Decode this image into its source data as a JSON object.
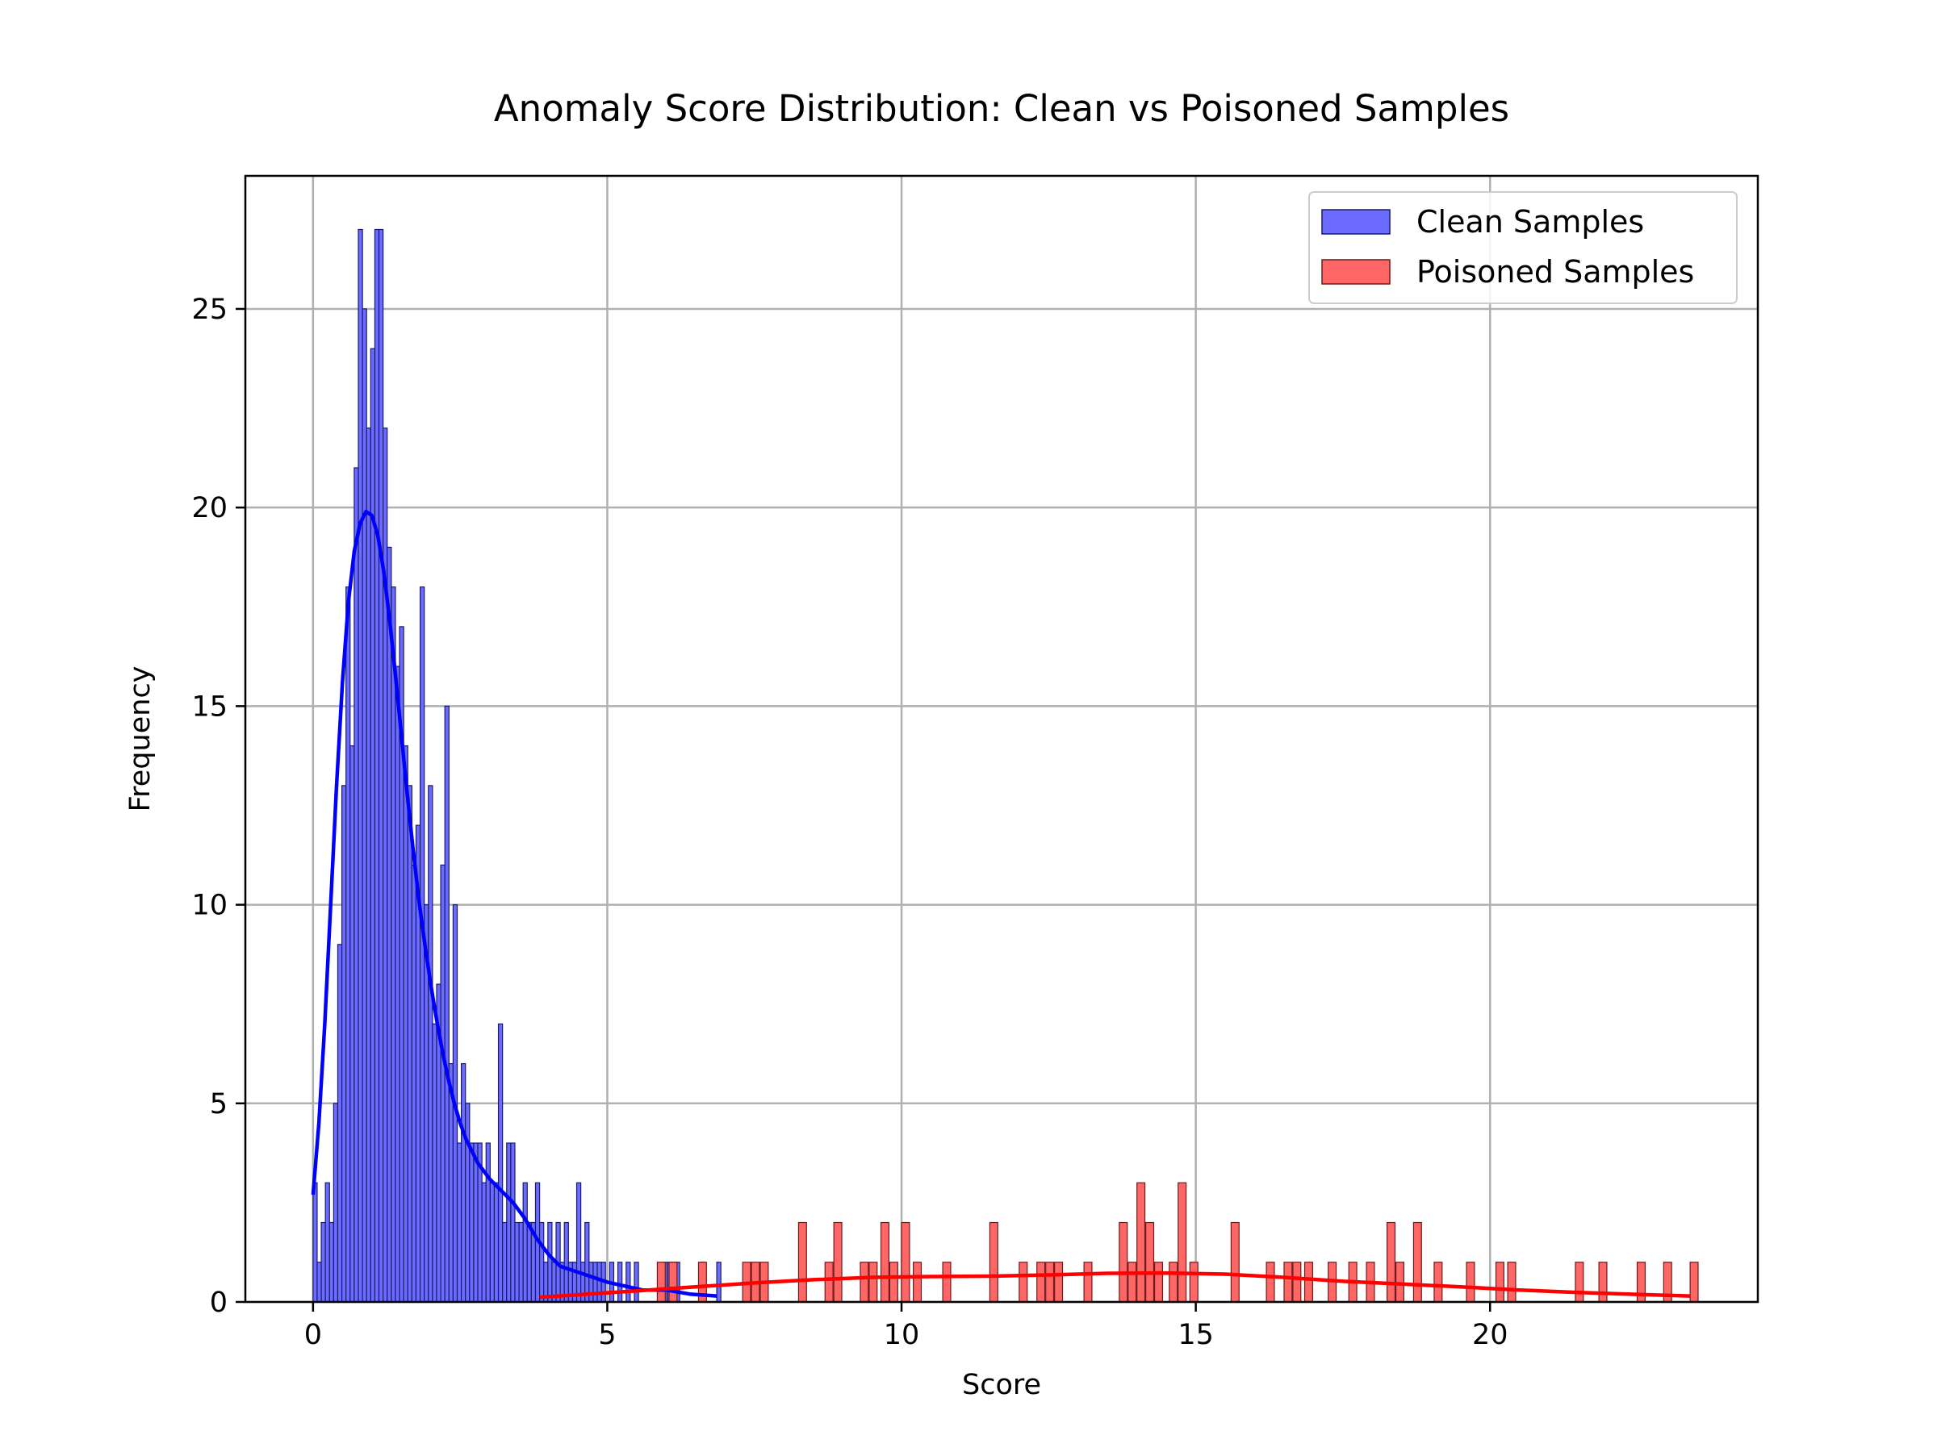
{
  "chart_data": {
    "type": "histogram",
    "title": "Anomaly Score Distribution: Clean vs Poisoned Samples",
    "xlabel": "Score",
    "ylabel": "Frequency",
    "xlim": [
      -1.15,
      24.55
    ],
    "ylim": [
      0,
      28.35
    ],
    "xticks": [
      0,
      5,
      10,
      15,
      20
    ],
    "yticks": [
      0,
      5,
      10,
      15,
      20,
      25
    ],
    "grid": true,
    "legend_position": "top-right",
    "series": [
      {
        "name": "Clean Samples",
        "color": "#6b6bff",
        "edge_color": "#1a1a6e",
        "kde_color": "#0000ff",
        "bin_width": 0.07,
        "bins": [
          [
            0.0,
            3
          ],
          [
            0.07,
            1
          ],
          [
            0.14,
            2
          ],
          [
            0.21,
            3
          ],
          [
            0.28,
            2
          ],
          [
            0.35,
            5
          ],
          [
            0.42,
            9
          ],
          [
            0.49,
            13
          ],
          [
            0.56,
            18
          ],
          [
            0.63,
            14
          ],
          [
            0.7,
            21
          ],
          [
            0.77,
            27
          ],
          [
            0.84,
            25
          ],
          [
            0.91,
            22
          ],
          [
            0.98,
            24
          ],
          [
            1.05,
            27
          ],
          [
            1.12,
            27
          ],
          [
            1.19,
            22
          ],
          [
            1.26,
            19
          ],
          [
            1.33,
            18
          ],
          [
            1.4,
            16
          ],
          [
            1.47,
            17
          ],
          [
            1.54,
            14
          ],
          [
            1.61,
            13
          ],
          [
            1.68,
            11
          ],
          [
            1.75,
            12
          ],
          [
            1.82,
            18
          ],
          [
            1.89,
            10
          ],
          [
            1.96,
            13
          ],
          [
            2.03,
            7
          ],
          [
            2.1,
            8
          ],
          [
            2.17,
            11
          ],
          [
            2.24,
            15
          ],
          [
            2.31,
            6
          ],
          [
            2.38,
            10
          ],
          [
            2.45,
            4
          ],
          [
            2.52,
            6
          ],
          [
            2.59,
            5
          ],
          [
            2.66,
            4
          ],
          [
            2.73,
            4
          ],
          [
            2.8,
            4
          ],
          [
            2.87,
            3
          ],
          [
            2.94,
            4
          ],
          [
            3.01,
            3
          ],
          [
            3.08,
            3
          ],
          [
            3.15,
            7
          ],
          [
            3.22,
            2
          ],
          [
            3.29,
            4
          ],
          [
            3.36,
            4
          ],
          [
            3.43,
            2
          ],
          [
            3.5,
            2
          ],
          [
            3.57,
            3
          ],
          [
            3.64,
            2
          ],
          [
            3.71,
            2
          ],
          [
            3.78,
            3
          ],
          [
            3.85,
            2
          ],
          [
            3.92,
            1
          ],
          [
            3.99,
            2
          ],
          [
            4.06,
            1
          ],
          [
            4.13,
            2
          ],
          [
            4.2,
            1
          ],
          [
            4.27,
            2
          ],
          [
            4.34,
            1
          ],
          [
            4.41,
            1
          ],
          [
            4.48,
            3
          ],
          [
            4.55,
            1
          ],
          [
            4.62,
            2
          ],
          [
            4.69,
            1
          ],
          [
            4.76,
            1
          ],
          [
            4.83,
            1
          ],
          [
            4.9,
            1
          ],
          [
            5.04,
            1
          ],
          [
            5.18,
            1
          ],
          [
            5.32,
            1
          ],
          [
            5.46,
            1
          ],
          [
            5.95,
            1
          ],
          [
            6.02,
            1
          ],
          [
            6.09,
            1
          ],
          [
            6.16,
            1
          ],
          [
            6.58,
            1
          ],
          [
            6.86,
            1
          ]
        ],
        "kde": [
          [
            0.0,
            2.7
          ],
          [
            0.1,
            4.5
          ],
          [
            0.2,
            7.0
          ],
          [
            0.3,
            10.0
          ],
          [
            0.4,
            13.0
          ],
          [
            0.5,
            15.6
          ],
          [
            0.6,
            17.6
          ],
          [
            0.7,
            18.9
          ],
          [
            0.8,
            19.6
          ],
          [
            0.9,
            19.9
          ],
          [
            1.0,
            19.8
          ],
          [
            1.1,
            19.3
          ],
          [
            1.2,
            18.4
          ],
          [
            1.3,
            17.2
          ],
          [
            1.4,
            15.8
          ],
          [
            1.5,
            14.3
          ],
          [
            1.6,
            12.8
          ],
          [
            1.7,
            11.4
          ],
          [
            1.8,
            10.1
          ],
          [
            1.9,
            9.0
          ],
          [
            2.0,
            8.0
          ],
          [
            2.1,
            7.1
          ],
          [
            2.2,
            6.3
          ],
          [
            2.3,
            5.6
          ],
          [
            2.4,
            5.0
          ],
          [
            2.5,
            4.5
          ],
          [
            2.6,
            4.1
          ],
          [
            2.7,
            3.8
          ],
          [
            2.8,
            3.5
          ],
          [
            3.0,
            3.1
          ],
          [
            3.2,
            2.8
          ],
          [
            3.4,
            2.5
          ],
          [
            3.6,
            2.1
          ],
          [
            3.8,
            1.6
          ],
          [
            4.0,
            1.2
          ],
          [
            4.2,
            0.9
          ],
          [
            4.4,
            0.8
          ],
          [
            4.6,
            0.7
          ],
          [
            4.8,
            0.6
          ],
          [
            5.0,
            0.5
          ],
          [
            5.3,
            0.4
          ],
          [
            5.6,
            0.3
          ],
          [
            6.0,
            0.3
          ],
          [
            6.4,
            0.2
          ],
          [
            6.86,
            0.15
          ]
        ]
      },
      {
        "name": "Poisoned Samples",
        "color": "#ff6666",
        "edge_color": "#6e1a1a",
        "kde_color": "#ff0000",
        "bin_width": 0.135,
        "bins": [
          [
            5.85,
            1
          ],
          [
            6.05,
            1
          ],
          [
            6.55,
            1
          ],
          [
            7.3,
            1
          ],
          [
            7.45,
            1
          ],
          [
            7.6,
            1
          ],
          [
            8.25,
            2
          ],
          [
            8.7,
            1
          ],
          [
            8.85,
            2
          ],
          [
            9.3,
            1
          ],
          [
            9.45,
            1
          ],
          [
            9.65,
            2
          ],
          [
            9.8,
            1
          ],
          [
            10.0,
            2
          ],
          [
            10.2,
            1
          ],
          [
            10.7,
            1
          ],
          [
            11.5,
            2
          ],
          [
            12.0,
            1
          ],
          [
            12.3,
            1
          ],
          [
            12.45,
            1
          ],
          [
            12.6,
            1
          ],
          [
            13.1,
            1
          ],
          [
            13.7,
            2
          ],
          [
            13.85,
            1
          ],
          [
            14.0,
            3
          ],
          [
            14.15,
            2
          ],
          [
            14.3,
            1
          ],
          [
            14.55,
            1
          ],
          [
            14.7,
            3
          ],
          [
            14.9,
            1
          ],
          [
            15.6,
            2
          ],
          [
            16.2,
            1
          ],
          [
            16.5,
            1
          ],
          [
            16.65,
            1
          ],
          [
            16.85,
            1
          ],
          [
            17.25,
            1
          ],
          [
            17.6,
            1
          ],
          [
            17.9,
            1
          ],
          [
            18.25,
            2
          ],
          [
            18.4,
            1
          ],
          [
            18.7,
            2
          ],
          [
            19.05,
            1
          ],
          [
            19.6,
            1
          ],
          [
            20.1,
            1
          ],
          [
            20.3,
            1
          ],
          [
            21.45,
            1
          ],
          [
            21.85,
            1
          ],
          [
            22.5,
            1
          ],
          [
            22.95,
            1
          ],
          [
            23.4,
            1
          ]
        ],
        "kde": [
          [
            3.85,
            0.12
          ],
          [
            4.5,
            0.18
          ],
          [
            5.5,
            0.28
          ],
          [
            6.5,
            0.38
          ],
          [
            7.5,
            0.48
          ],
          [
            8.5,
            0.56
          ],
          [
            9.5,
            0.62
          ],
          [
            10.5,
            0.64
          ],
          [
            11.5,
            0.65
          ],
          [
            12.5,
            0.68
          ],
          [
            13.5,
            0.72
          ],
          [
            14.5,
            0.73
          ],
          [
            15.5,
            0.7
          ],
          [
            16.5,
            0.62
          ],
          [
            17.5,
            0.52
          ],
          [
            18.5,
            0.45
          ],
          [
            19.5,
            0.38
          ],
          [
            20.5,
            0.3
          ],
          [
            21.5,
            0.24
          ],
          [
            22.5,
            0.19
          ],
          [
            23.4,
            0.15
          ]
        ]
      }
    ]
  }
}
